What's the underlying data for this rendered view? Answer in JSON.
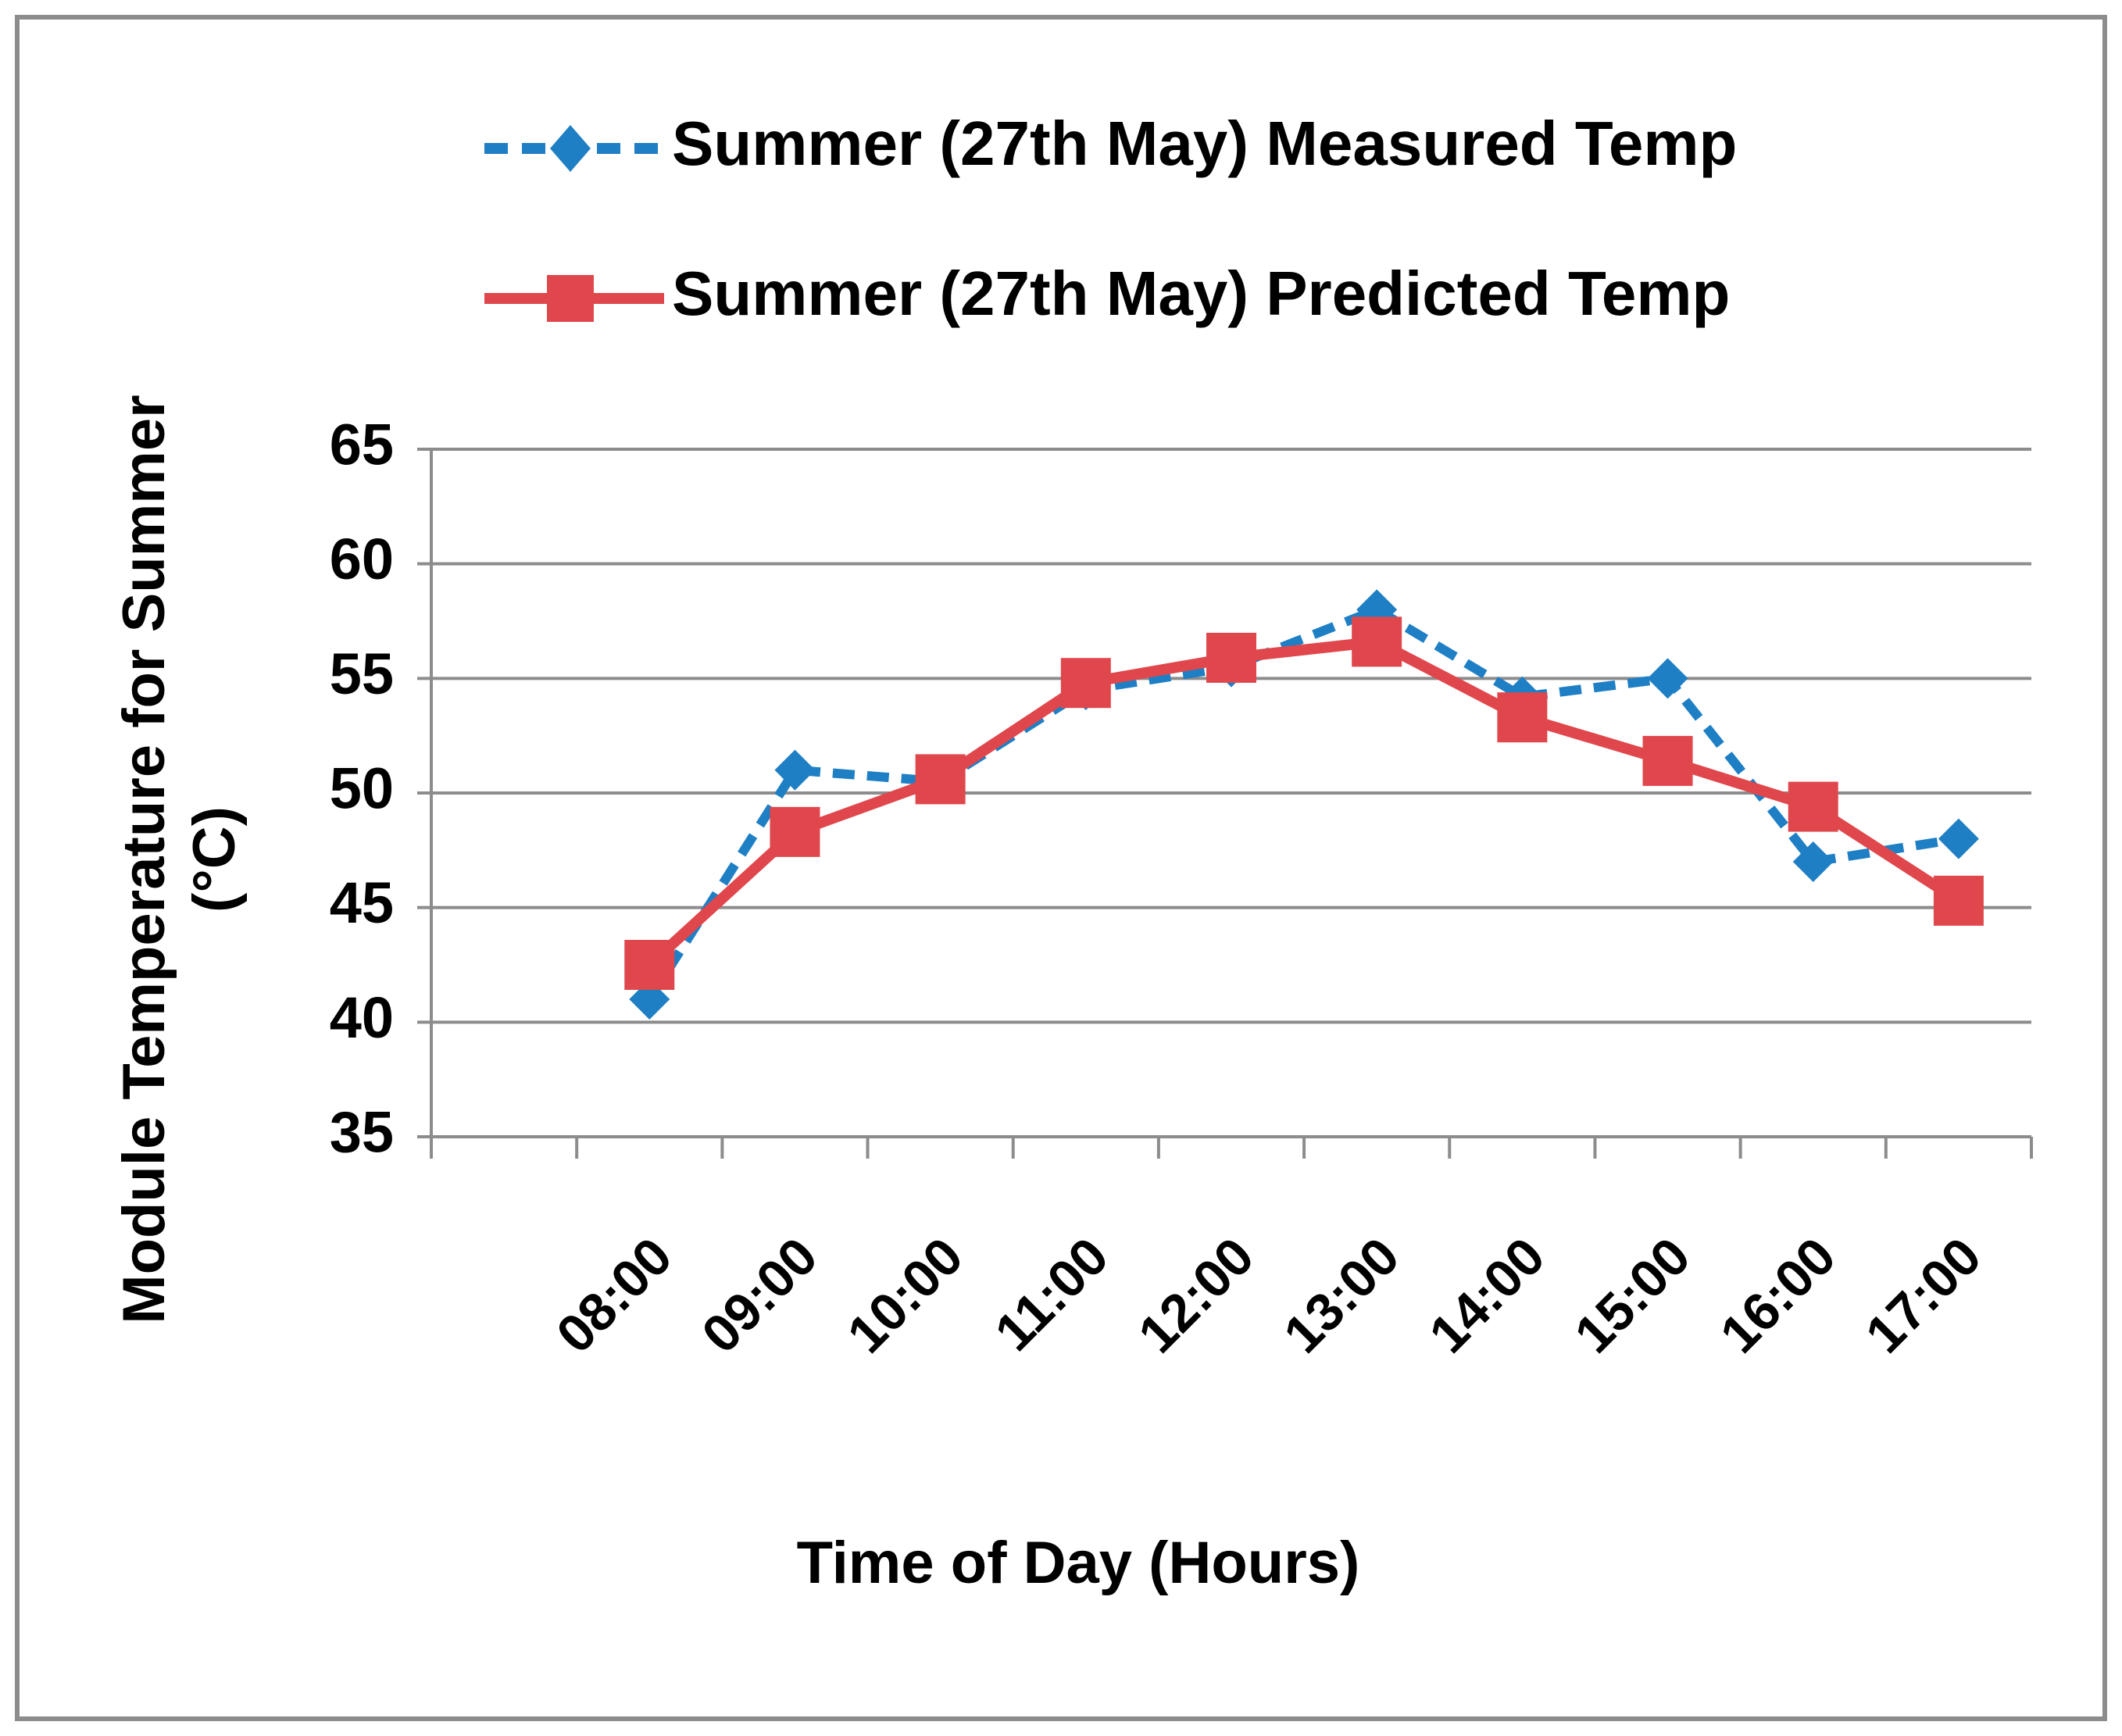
{
  "chart_data": {
    "type": "line",
    "title": "",
    "xlabel": "Time of Day (Hours)",
    "ylabel_line1": "Module Temperature for Summer",
    "ylabel_line2": "(°C)",
    "categories": [
      "08:00",
      "09:00",
      "10:00",
      "11:00",
      "12:00",
      "13:00",
      "14:00",
      "15:00",
      "16:00",
      "17:00"
    ],
    "ylim": [
      35,
      65
    ],
    "yticks": [
      35,
      40,
      45,
      50,
      55,
      60,
      65
    ],
    "ytick_labels": [
      "35",
      "40",
      "45",
      "50",
      "55",
      "60",
      "65"
    ],
    "grid": true,
    "legend_position": "top",
    "series": [
      {
        "name": "Summer (27th May) Measured Temp",
        "values": [
          41.0,
          51.0,
          50.5,
          54.5,
          55.5,
          58.0,
          54.2,
          55.0,
          47.0,
          48.0
        ],
        "color": "#1f7fc4",
        "line_style": "dashed",
        "marker": "diamond"
      },
      {
        "name": "Summer (27th May) Predicted Temp",
        "values": [
          42.5,
          48.3,
          50.6,
          54.8,
          55.9,
          56.6,
          53.3,
          51.4,
          49.4,
          45.3
        ],
        "color": "#e0474c",
        "line_style": "solid",
        "marker": "square"
      }
    ]
  }
}
